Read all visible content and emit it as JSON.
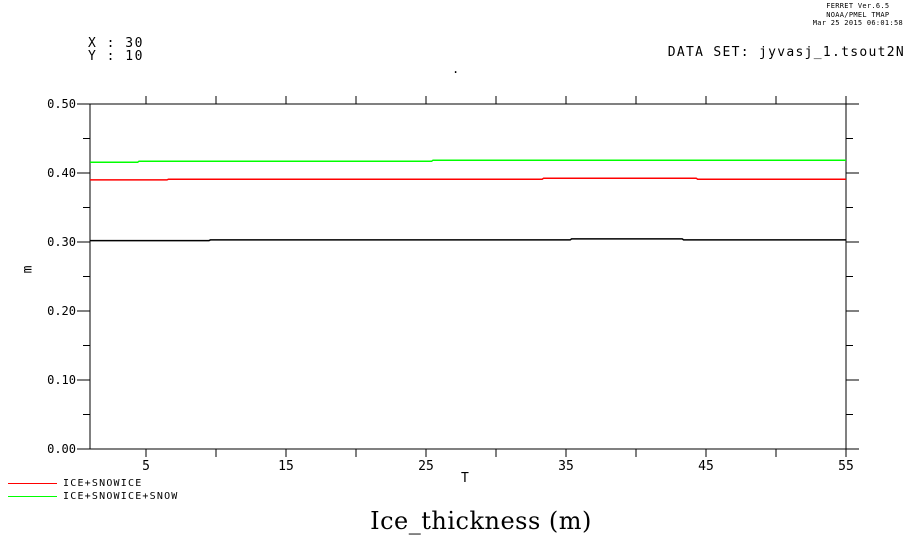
{
  "window": {
    "background": "#ffffff"
  },
  "header": {
    "lines": [
      "FERRET Ver.6.5",
      "NOAA/PMEL TMAP",
      "Mar 25 2015 06:01:58"
    ]
  },
  "annotations": {
    "x_value": "X : 30",
    "y_value": "Y : 10",
    "dataset": "DATA SET: jyvasj_1.tsout2N",
    "stray_dot": "."
  },
  "chart_data": {
    "type": "line",
    "title": "Ice_thickness (m)",
    "xlabel": "T",
    "ylabel": "m",
    "xlim": [
      1,
      55
    ],
    "ylim": [
      0.0,
      0.5
    ],
    "x_major_ticks": [
      5,
      15,
      25,
      35,
      45,
      55
    ],
    "x_minor_ticks": [
      10,
      20,
      30,
      40,
      50
    ],
    "y_major_ticks": [
      0.0,
      0.1,
      0.2,
      0.3,
      0.4,
      0.5
    ],
    "y_minor_ticks": [
      0.05,
      0.15,
      0.25,
      0.35,
      0.45
    ],
    "grid": false,
    "legend_position": "bottom-left",
    "series": [
      {
        "name": "",
        "color": "#000000",
        "points": [
          [
            1,
            0.302
          ],
          [
            9.5,
            0.302
          ],
          [
            9.6,
            0.303
          ],
          [
            35.3,
            0.303
          ],
          [
            35.4,
            0.3045
          ],
          [
            43.3,
            0.3045
          ],
          [
            43.4,
            0.303
          ],
          [
            55,
            0.303
          ]
        ]
      },
      {
        "name": "ICE+SNOWICE",
        "color": "#ff0000",
        "points": [
          [
            1,
            0.39
          ],
          [
            6.5,
            0.39
          ],
          [
            6.6,
            0.391
          ],
          [
            33.3,
            0.391
          ],
          [
            33.4,
            0.3925
          ],
          [
            44.3,
            0.3925
          ],
          [
            44.4,
            0.391
          ],
          [
            55,
            0.391
          ]
        ]
      },
      {
        "name": "ICE+SNOWICE+SNOW",
        "color": "#00ff00",
        "points": [
          [
            1,
            0.4155
          ],
          [
            4.4,
            0.4155
          ],
          [
            4.5,
            0.417
          ],
          [
            25.4,
            0.417
          ],
          [
            25.5,
            0.4185
          ],
          [
            55,
            0.4185
          ]
        ]
      }
    ],
    "legend": [
      {
        "label": "ICE+SNOWICE",
        "color": "#ff0000"
      },
      {
        "label": "ICE+SNOWICE+SNOW",
        "color": "#00ff00"
      }
    ]
  }
}
